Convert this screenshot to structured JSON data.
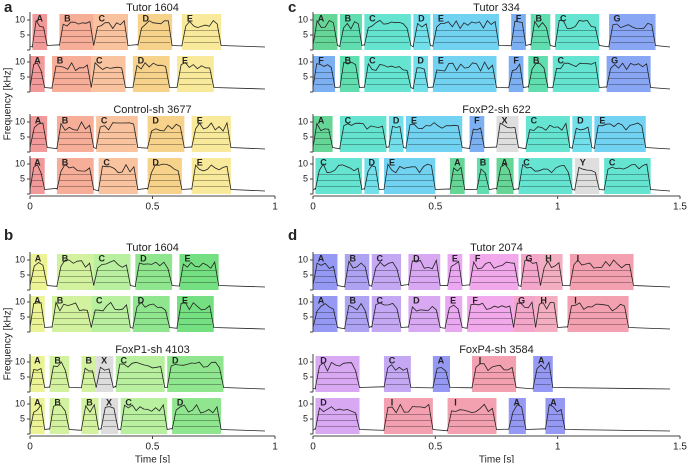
{
  "chart_data": [
    {
      "type": "spectrogram",
      "panel": "a",
      "ylabel": "Frequency [kHz]",
      "xlim": [
        0,
        1
      ],
      "xticks": [
        0,
        0.5,
        1
      ],
      "ylim": [
        0,
        12
      ],
      "yticks": [
        0,
        5,
        10
      ],
      "rows": [
        {
          "title": "Tutor 1604",
          "syllables": [
            {
              "label": "A",
              "start": 0.01,
              "end": 0.07,
              "color": "#ef7f7f"
            },
            {
              "label": "B",
              "start": 0.12,
              "end": 0.26,
              "color": "#f49a7e"
            },
            {
              "label": "C",
              "start": 0.26,
              "end": 0.4,
              "color": "#f6b486"
            },
            {
              "label": "D",
              "start": 0.44,
              "end": 0.58,
              "color": "#f5c76e"
            },
            {
              "label": "E",
              "start": 0.62,
              "end": 0.78,
              "color": "#f7e481"
            }
          ]
        },
        {
          "syllables": [
            {
              "label": "A",
              "start": 0.0,
              "end": 0.06,
              "color": "#ef7f7f"
            },
            {
              "label": "B",
              "start": 0.09,
              "end": 0.25,
              "color": "#f49a7e"
            },
            {
              "label": "C",
              "start": 0.25,
              "end": 0.39,
              "color": "#f6b486"
            },
            {
              "label": "D",
              "start": 0.42,
              "end": 0.57,
              "color": "#f5c76e"
            },
            {
              "label": "E",
              "start": 0.6,
              "end": 0.75,
              "color": "#f7e481"
            }
          ]
        },
        {
          "title": "Control-sh 3677",
          "syllables": [
            {
              "label": "A",
              "start": 0.0,
              "end": 0.07,
              "color": "#ef7f7f"
            },
            {
              "label": "B",
              "start": 0.11,
              "end": 0.26,
              "color": "#f49a7e"
            },
            {
              "label": "C",
              "start": 0.27,
              "end": 0.44,
              "color": "#f6b486"
            },
            {
              "label": "D",
              "start": 0.48,
              "end": 0.63,
              "color": "#f5c76e"
            },
            {
              "label": "E",
              "start": 0.66,
              "end": 0.82,
              "color": "#f7e481"
            }
          ]
        },
        {
          "syllables": [
            {
              "label": "A",
              "start": 0.0,
              "end": 0.06,
              "color": "#ef7f7f"
            },
            {
              "label": "B",
              "start": 0.11,
              "end": 0.26,
              "color": "#f49a7e"
            },
            {
              "label": "C",
              "start": 0.28,
              "end": 0.44,
              "color": "#f6b486"
            },
            {
              "label": "D",
              "start": 0.48,
              "end": 0.62,
              "color": "#f5c76e"
            },
            {
              "label": "E",
              "start": 0.66,
              "end": 0.82,
              "color": "#f7e481"
            }
          ]
        }
      ]
    },
    {
      "type": "spectrogram",
      "panel": "b",
      "ylabel": "Frequency [kHz]",
      "xlabel": "Time [s]",
      "xlim": [
        0,
        1
      ],
      "xticks": [
        0,
        0.5,
        1
      ],
      "ylim": [
        0,
        12
      ],
      "yticks": [
        0,
        5,
        10
      ],
      "rows": [
        {
          "title": "Tutor 1604",
          "syllables": [
            {
              "label": "A",
              "start": 0.0,
              "end": 0.07,
              "color": "#e6f07a"
            },
            {
              "label": "B",
              "start": 0.11,
              "end": 0.26,
              "color": "#c8ef88"
            },
            {
              "label": "C",
              "start": 0.26,
              "end": 0.41,
              "color": "#a6ec88"
            },
            {
              "label": "D",
              "start": 0.43,
              "end": 0.58,
              "color": "#74e072"
            },
            {
              "label": "E",
              "start": 0.61,
              "end": 0.77,
              "color": "#52d862"
            }
          ]
        },
        {
          "syllables": [
            {
              "label": "A",
              "start": 0.0,
              "end": 0.06,
              "color": "#e6f07a"
            },
            {
              "label": "B",
              "start": 0.09,
              "end": 0.25,
              "color": "#c8ef88"
            },
            {
              "label": "C",
              "start": 0.25,
              "end": 0.41,
              "color": "#a6ec88"
            },
            {
              "label": "D",
              "start": 0.42,
              "end": 0.57,
              "color": "#74e072"
            },
            {
              "label": "E",
              "start": 0.6,
              "end": 0.75,
              "color": "#52d862"
            }
          ]
        },
        {
          "title": "FoxP1-sh 4103",
          "syllables": [
            {
              "label": "A",
              "start": 0.0,
              "end": 0.06,
              "color": "#e6f07a"
            },
            {
              "label": "B",
              "start": 0.08,
              "end": 0.16,
              "color": "#c8ef88"
            },
            {
              "label": "B",
              "start": 0.21,
              "end": 0.27,
              "color": "#c8ef88"
            },
            {
              "label": "X",
              "start": 0.27,
              "end": 0.34,
              "color": "#d4d4d4"
            },
            {
              "label": "C",
              "start": 0.35,
              "end": 0.55,
              "color": "#a6ec88"
            },
            {
              "label": "D",
              "start": 0.56,
              "end": 0.79,
              "color": "#74e072"
            }
          ]
        },
        {
          "syllables": [
            {
              "label": "A",
              "start": 0.0,
              "end": 0.06,
              "color": "#e6f07a"
            },
            {
              "label": "B",
              "start": 0.08,
              "end": 0.16,
              "color": "#c8ef88"
            },
            {
              "label": "B",
              "start": 0.21,
              "end": 0.28,
              "color": "#c8ef88"
            },
            {
              "label": "X",
              "start": 0.29,
              "end": 0.36,
              "color": "#d4d4d4"
            },
            {
              "label": "C",
              "start": 0.37,
              "end": 0.56,
              "color": "#a6ec88"
            },
            {
              "label": "D",
              "start": 0.58,
              "end": 0.78,
              "color": "#74e072"
            }
          ]
        }
      ]
    },
    {
      "type": "spectrogram",
      "panel": "c",
      "xlim": [
        0,
        1.5
      ],
      "xticks": [
        0,
        0.5,
        1,
        1.5
      ],
      "ylim": [
        0,
        12
      ],
      "yticks": [
        0,
        5,
        10
      ],
      "rows": [
        {
          "title": "Tutor 334",
          "syllables": [
            {
              "label": "A",
              "start": 0.0,
              "end": 0.1,
              "color": "#3fcc7c"
            },
            {
              "label": "B",
              "start": 0.11,
              "end": 0.2,
              "color": "#3ad69c"
            },
            {
              "label": "C",
              "start": 0.21,
              "end": 0.4,
              "color": "#3fdfc6"
            },
            {
              "label": "D",
              "start": 0.41,
              "end": 0.48,
              "color": "#4fd8e6"
            },
            {
              "label": "E",
              "start": 0.49,
              "end": 0.76,
              "color": "#4dc8ee"
            },
            {
              "label": "F",
              "start": 0.81,
              "end": 0.87,
              "color": "#5b9cef"
            },
            {
              "label": "B",
              "start": 0.89,
              "end": 0.97,
              "color": "#3ad69c"
            },
            {
              "label": "C",
              "start": 0.99,
              "end": 1.17,
              "color": "#3fdfc6"
            },
            {
              "label": "G",
              "start": 1.21,
              "end": 1.4,
              "color": "#6a90f0"
            }
          ]
        },
        {
          "syllables": [
            {
              "label": "F",
              "start": 0.0,
              "end": 0.09,
              "color": "#5b9cef"
            },
            {
              "label": "B",
              "start": 0.11,
              "end": 0.19,
              "color": "#3ad69c"
            },
            {
              "label": "C",
              "start": 0.21,
              "end": 0.4,
              "color": "#3fdfc6"
            },
            {
              "label": "D",
              "start": 0.41,
              "end": 0.47,
              "color": "#4fd8e6"
            },
            {
              "label": "E",
              "start": 0.49,
              "end": 0.75,
              "color": "#4dc8ee"
            },
            {
              "label": "F",
              "start": 0.8,
              "end": 0.86,
              "color": "#5b9cef"
            },
            {
              "label": "B",
              "start": 0.88,
              "end": 0.96,
              "color": "#3ad69c"
            },
            {
              "label": "C",
              "start": 0.98,
              "end": 1.17,
              "color": "#3fdfc6"
            },
            {
              "label": "G",
              "start": 1.2,
              "end": 1.38,
              "color": "#6a90f0"
            }
          ]
        },
        {
          "title": "FoxP2-sh 622",
          "syllables": [
            {
              "label": "A",
              "start": 0.0,
              "end": 0.08,
              "color": "#3fcc7c"
            },
            {
              "label": "C",
              "start": 0.11,
              "end": 0.3,
              "color": "#3fdfc6"
            },
            {
              "label": "D",
              "start": 0.31,
              "end": 0.37,
              "color": "#4fd8e6"
            },
            {
              "label": "E",
              "start": 0.38,
              "end": 0.61,
              "color": "#4dc8ee"
            },
            {
              "label": "F",
              "start": 0.64,
              "end": 0.7,
              "color": "#5b9cef"
            },
            {
              "label": "X",
              "start": 0.75,
              "end": 0.84,
              "color": "#d6d6d6"
            },
            {
              "label": "C",
              "start": 0.87,
              "end": 1.05,
              "color": "#3fdfc6"
            },
            {
              "label": "D",
              "start": 1.06,
              "end": 1.14,
              "color": "#4fd8e6"
            },
            {
              "label": "E",
              "start": 1.15,
              "end": 1.36,
              "color": "#4dc8ee"
            }
          ]
        },
        {
          "syllables": [
            {
              "label": "C",
              "start": 0.01,
              "end": 0.2,
              "color": "#3fdfc6"
            },
            {
              "label": "D",
              "start": 0.21,
              "end": 0.27,
              "color": "#4fd8e6"
            },
            {
              "label": "E",
              "start": 0.29,
              "end": 0.5,
              "color": "#4dc8ee"
            },
            {
              "label": "A",
              "start": 0.56,
              "end": 0.62,
              "color": "#3fcc7c"
            },
            {
              "label": "B",
              "start": 0.67,
              "end": 0.72,
              "color": "#3ad69c"
            },
            {
              "label": "A",
              "start": 0.75,
              "end": 0.82,
              "color": "#3fcc7c"
            },
            {
              "label": "C",
              "start": 0.84,
              "end": 1.06,
              "color": "#3fdfc6"
            },
            {
              "label": "Y",
              "start": 1.07,
              "end": 1.17,
              "color": "#d6d6d6"
            },
            {
              "label": "C",
              "start": 1.19,
              "end": 1.38,
              "color": "#3fdfc6"
            }
          ]
        }
      ]
    },
    {
      "type": "spectrogram",
      "panel": "d",
      "xlabel": "Time [s]",
      "xlim": [
        0,
        1.5
      ],
      "xticks": [
        0,
        0.5,
        1,
        1.5
      ],
      "ylim": [
        0,
        12
      ],
      "yticks": [
        0,
        5,
        10
      ],
      "rows": [
        {
          "title": "Tutor 2074",
          "syllables": [
            {
              "label": "A",
              "start": 0.0,
              "end": 0.1,
              "color": "#7b80f0"
            },
            {
              "label": "B",
              "start": 0.13,
              "end": 0.23,
              "color": "#9a8cf0"
            },
            {
              "label": "C",
              "start": 0.24,
              "end": 0.36,
              "color": "#b692f0"
            },
            {
              "label": "D",
              "start": 0.39,
              "end": 0.52,
              "color": "#cf92f0"
            },
            {
              "label": "E",
              "start": 0.55,
              "end": 0.61,
              "color": "#e592f0"
            },
            {
              "label": "F",
              "start": 0.64,
              "end": 0.84,
              "color": "#ee94e6"
            },
            {
              "label": "G",
              "start": 0.85,
              "end": 0.93,
              "color": "#f090bc"
            },
            {
              "label": "H",
              "start": 0.93,
              "end": 1.02,
              "color": "#f09ab2"
            },
            {
              "label": "I",
              "start": 1.05,
              "end": 1.31,
              "color": "#f08a9c"
            }
          ]
        },
        {
          "syllables": [
            {
              "label": "A",
              "start": 0.0,
              "end": 0.1,
              "color": "#7b80f0"
            },
            {
              "label": "B",
              "start": 0.13,
              "end": 0.23,
              "color": "#9a8cf0"
            },
            {
              "label": "C",
              "start": 0.24,
              "end": 0.36,
              "color": "#b692f0"
            },
            {
              "label": "D",
              "start": 0.39,
              "end": 0.52,
              "color": "#cf92f0"
            },
            {
              "label": "E",
              "start": 0.54,
              "end": 0.61,
              "color": "#e592f0"
            },
            {
              "label": "F",
              "start": 0.63,
              "end": 0.82,
              "color": "#ee94e6"
            },
            {
              "label": "G",
              "start": 0.82,
              "end": 0.91,
              "color": "#f090bc"
            },
            {
              "label": "H",
              "start": 0.91,
              "end": 1.0,
              "color": "#f09ab2"
            },
            {
              "label": "I",
              "start": 1.04,
              "end": 1.29,
              "color": "#f08a9c"
            }
          ]
        },
        {
          "title": "FoxP4-sh 3584",
          "syllables": [
            {
              "label": "D",
              "start": 0.01,
              "end": 0.19,
              "color": "#cf92f0"
            },
            {
              "label": "C",
              "start": 0.29,
              "end": 0.4,
              "color": "#b692f0"
            },
            {
              "label": "A",
              "start": 0.49,
              "end": 0.56,
              "color": "#7b80f0"
            },
            {
              "label": "I",
              "start": 0.65,
              "end": 0.83,
              "color": "#f08a9c"
            },
            {
              "label": "A",
              "start": 0.9,
              "end": 0.98,
              "color": "#7b80f0"
            }
          ]
        },
        {
          "syllables": [
            {
              "label": "D",
              "start": 0.01,
              "end": 0.19,
              "color": "#cf92f0"
            },
            {
              "label": "I",
              "start": 0.29,
              "end": 0.49,
              "color": "#f08a9c"
            },
            {
              "label": "I",
              "start": 0.55,
              "end": 0.75,
              "color": "#f08a9c"
            },
            {
              "label": "A",
              "start": 0.8,
              "end": 0.87,
              "color": "#7b80f0"
            },
            {
              "label": "A",
              "start": 0.95,
              "end": 1.03,
              "color": "#7b80f0"
            }
          ]
        }
      ]
    }
  ]
}
